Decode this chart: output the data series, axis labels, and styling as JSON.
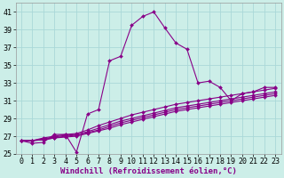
{
  "xlabel": "Windchill (Refroidissement éolien,°C)",
  "background_color": "#cceee8",
  "grid_color": "#aad8d8",
  "line_color": "#880088",
  "xlim": [
    -0.5,
    23.5
  ],
  "ylim": [
    25,
    42
  ],
  "yticks": [
    25,
    27,
    29,
    31,
    33,
    35,
    37,
    39,
    41
  ],
  "xticks": [
    0,
    1,
    2,
    3,
    4,
    5,
    6,
    7,
    8,
    9,
    10,
    11,
    12,
    13,
    14,
    15,
    16,
    17,
    18,
    19,
    20,
    21,
    22,
    23
  ],
  "series": [
    [
      26.5,
      26.2,
      26.3,
      27.2,
      27.2,
      25.2,
      29.5,
      30.0,
      35.5,
      36.0,
      39.5,
      40.5,
      41.0,
      39.2,
      37.5,
      36.8,
      33.0,
      33.2,
      32.5,
      31.0,
      31.8,
      32.0,
      32.5,
      32.5
    ],
    [
      26.5,
      26.5,
      26.8,
      27.0,
      27.2,
      27.3,
      27.7,
      28.2,
      28.6,
      29.0,
      29.4,
      29.7,
      30.0,
      30.3,
      30.6,
      30.8,
      31.0,
      31.2,
      31.4,
      31.6,
      31.8,
      32.0,
      32.2,
      32.4
    ],
    [
      26.5,
      26.5,
      26.7,
      26.9,
      27.1,
      27.2,
      27.5,
      27.9,
      28.3,
      28.7,
      29.0,
      29.3,
      29.6,
      29.9,
      30.2,
      30.4,
      30.6,
      30.8,
      31.0,
      31.2,
      31.4,
      31.6,
      31.8,
      32.0
    ],
    [
      26.5,
      26.5,
      26.6,
      26.8,
      27.0,
      27.1,
      27.4,
      27.7,
      28.1,
      28.5,
      28.8,
      29.1,
      29.4,
      29.7,
      30.0,
      30.2,
      30.4,
      30.6,
      30.8,
      31.0,
      31.2,
      31.4,
      31.6,
      31.8
    ],
    [
      26.5,
      26.5,
      26.6,
      26.8,
      26.9,
      27.0,
      27.3,
      27.6,
      27.9,
      28.3,
      28.6,
      28.9,
      29.2,
      29.5,
      29.8,
      30.0,
      30.2,
      30.4,
      30.6,
      30.8,
      31.0,
      31.2,
      31.4,
      31.6
    ]
  ],
  "marker": "D",
  "markersize": 2.0,
  "linewidth": 0.8,
  "xlabel_fontsize": 6.5,
  "tick_fontsize": 6.0
}
